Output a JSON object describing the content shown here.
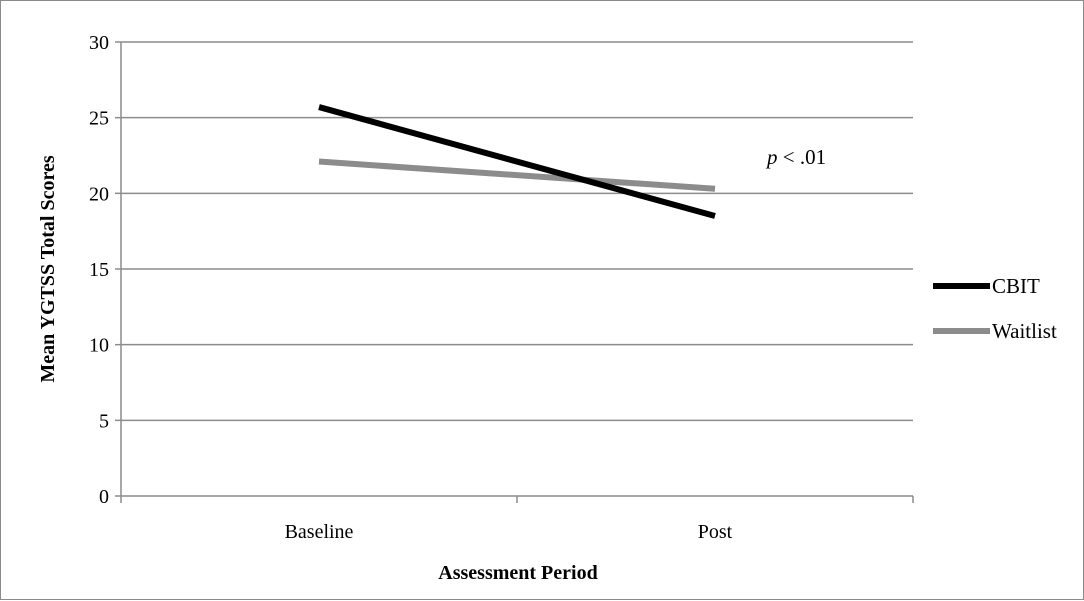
{
  "chart_data": {
    "type": "line",
    "title": "",
    "xlabel": "Assessment Period",
    "ylabel": "Mean YGTSS Total Scores",
    "categories": [
      "Baseline",
      "Post"
    ],
    "ylim": [
      0,
      30
    ],
    "yticks": [
      "0",
      "5",
      "10",
      "15",
      "20",
      "25",
      "30"
    ],
    "grid": true,
    "legend_position": "right",
    "series": [
      {
        "name": "CBIT",
        "values": [
          25.7,
          18.5
        ],
        "color": "#000000"
      },
      {
        "name": "Waitlist",
        "values": [
          22.1,
          20.3
        ],
        "color": "#8c8c8c"
      }
    ],
    "annotation": {
      "italic": "p",
      "rest": " < .01"
    }
  },
  "colors": {
    "grid": "#8c8c8c",
    "axis": "#8c8c8c",
    "frame": "#8a8a8a"
  }
}
